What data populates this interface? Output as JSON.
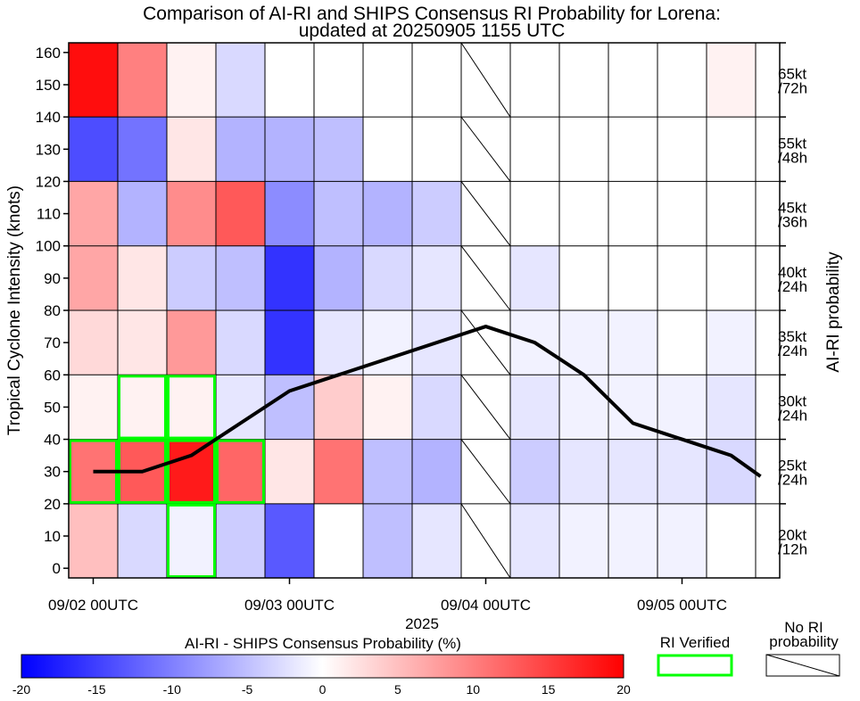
{
  "chart_data": {
    "type": "heatmap",
    "title_line1": "Comparison of AI-RI and SHIPS Consensus RI Probability for Lorena:",
    "title_line2": "updated at 20250905 1155 UTC",
    "ylabel": "Tropical Cyclone Intensity (knots)",
    "right_axis_label": "AI-RI probability",
    "year_label": "2025",
    "ylim": [
      -3,
      163
    ],
    "y_ticks": [
      0,
      10,
      20,
      30,
      40,
      50,
      60,
      70,
      80,
      90,
      100,
      110,
      120,
      130,
      140,
      150,
      160
    ],
    "x_ticks": [
      {
        "label": "09/02 00UTC",
        "col": 0.5
      },
      {
        "label": "09/03 00UTC",
        "col": 4.5
      },
      {
        "label": "09/04 00UTC",
        "col": 8.5
      },
      {
        "label": "09/05 00UTC",
        "col": 12.5
      }
    ],
    "columns": [
      "09/02 00UTC",
      "09/02 06UTC",
      "09/02 12UTC",
      "09/02 18UTC",
      "09/03 00UTC",
      "09/03 06UTC",
      "09/03 12UTC",
      "09/03 18UTC",
      "09/04 00UTC",
      "09/04 06UTC",
      "09/04 12UTC",
      "09/04 18UTC",
      "09/05 00UTC",
      "09/05 06UTC"
    ],
    "row_bands": [
      {
        "label": "20kt /12h",
        "label1": "20kt",
        "label2": "/12h",
        "y0": -3,
        "y1": 20
      },
      {
        "label": "25kt /24h",
        "label1": "25kt",
        "label2": "/24h",
        "y0": 20,
        "y1": 40
      },
      {
        "label": "30kt /24h",
        "label1": "30kt",
        "label2": "/24h",
        "y0": 40,
        "y1": 60
      },
      {
        "label": "35kt /24h",
        "label1": "35kt",
        "label2": "/24h",
        "y0": 60,
        "y1": 80
      },
      {
        "label": "40kt /24h",
        "label1": "40kt",
        "label2": "/24h",
        "y0": 80,
        "y1": 100
      },
      {
        "label": "45kt /36h",
        "label1": "45kt",
        "label2": "/36h",
        "y0": 100,
        "y1": 120
      },
      {
        "label": "55kt /48h",
        "label1": "55kt",
        "label2": "/48h",
        "y0": 120,
        "y1": 140
      },
      {
        "label": "65kt /72h",
        "label1": "65kt",
        "label2": "/72h",
        "y0": 140,
        "y1": 163
      }
    ],
    "values": [
      [
        5,
        -3,
        -1,
        -4,
        -13,
        0,
        -5,
        -2,
        null,
        -2,
        -1,
        -1,
        -1,
        0
      ],
      [
        11,
        13,
        18,
        12,
        2,
        11,
        -5,
        -6,
        null,
        -4,
        -2,
        -2,
        -2,
        -3
      ],
      [
        1,
        1,
        1,
        -2,
        -5,
        4,
        1,
        -3,
        null,
        -2,
        -1,
        -1,
        -1,
        -2
      ],
      [
        3,
        2,
        8,
        -3,
        -16,
        -2,
        -1,
        -2,
        null,
        -1,
        -1,
        -1,
        0,
        -1
      ],
      [
        7,
        2,
        -4,
        -5,
        -16,
        -6,
        -3,
        -2,
        null,
        -2,
        0,
        0,
        0,
        0
      ],
      [
        7,
        -6,
        9,
        13,
        -9,
        -5,
        -6,
        -4,
        null,
        0,
        0,
        0,
        0,
        0
      ],
      [
        -14,
        -11,
        2,
        -6,
        -6,
        -5,
        0,
        0,
        null,
        0,
        0,
        0,
        0,
        0
      ],
      [
        19,
        10,
        1,
        -3,
        0,
        0,
        0,
        0,
        null,
        0,
        0,
        0,
        0,
        1
      ]
    ],
    "ri_verified": [
      {
        "col": 0,
        "row": 1
      },
      {
        "col": 1,
        "row": 1
      },
      {
        "col": 2,
        "row": 1
      },
      {
        "col": 3,
        "row": 1
      },
      {
        "col": 1,
        "row": 2
      },
      {
        "col": 2,
        "row": 2
      },
      {
        "col": 2,
        "row": 0
      }
    ],
    "intensity_line": {
      "x": [
        0.5,
        1.5,
        2.5,
        3.5,
        4.5,
        5.5,
        6.5,
        7.5,
        8.5,
        9.5,
        10.5,
        11.5,
        12.5,
        13.5,
        14.1
      ],
      "y": [
        30,
        30,
        35,
        45,
        55,
        60,
        65,
        70,
        75,
        70,
        60,
        45,
        40,
        35,
        28.5
      ]
    },
    "colorbar": {
      "title": "AI-RI - SHIPS Consensus Probability (%)",
      "min": -20,
      "max": 20,
      "ticks": [
        "-20",
        "-15",
        "-10",
        "-5",
        "0",
        "5",
        "10",
        "15",
        "20"
      ],
      "low_color": "#0000ff",
      "high_color": "#ff0000"
    },
    "legend": {
      "ri_verified_label": "RI Verified",
      "ri_verified_color": "#00ff00",
      "no_ri_label_line1": "No RI",
      "no_ri_label_line2": "probability"
    },
    "line_color": "#000000",
    "grid": true
  }
}
